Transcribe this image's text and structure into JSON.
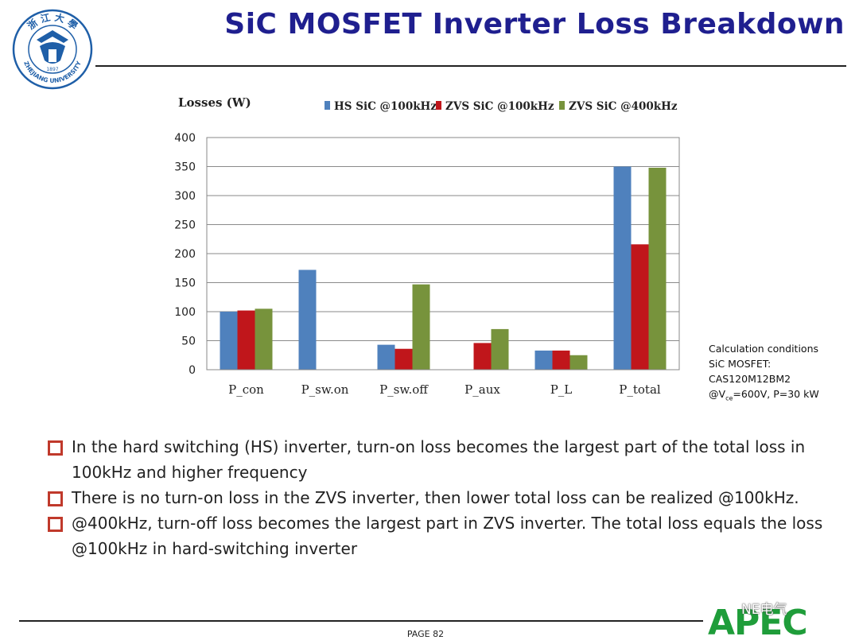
{
  "header": {
    "title": "SiC MOSFET Inverter Loss Breakdown",
    "logo_text": "ZHEJIANG UNIVERSITY",
    "logo_year": "1897"
  },
  "chart_data": {
    "type": "bar",
    "ylabel": "Losses (W)",
    "ylim": [
      0,
      400
    ],
    "yticks": [
      0,
      50,
      100,
      150,
      200,
      250,
      300,
      350,
      400
    ],
    "grid": true,
    "legend_position": "top",
    "categories": [
      "P_con",
      "P_sw.on",
      "P_sw.off",
      "P_aux",
      "P_L",
      "P_total"
    ],
    "series": [
      {
        "name": "HS SiC @100kHz",
        "color": "#4f81bd",
        "values": [
          100,
          172,
          43,
          0,
          33,
          350
        ]
      },
      {
        "name": "ZVS SiC @100kHz",
        "color": "#c0161b",
        "values": [
          102,
          0,
          36,
          46,
          33,
          216
        ]
      },
      {
        "name": "ZVS SiC @400kHz",
        "color": "#77933c",
        "values": [
          105,
          0,
          147,
          70,
          25,
          348
        ]
      }
    ]
  },
  "conditions": {
    "line1": "Calculation conditions",
    "line2": "SiC MOSFET:",
    "line3": "CAS120M12BM2",
    "line4_prefix": "@V",
    "line4_sub": "ce",
    "line4_suffix": "=600V, P=30 kW"
  },
  "bullets": [
    "In the hard switching (HS) inverter, turn-on loss becomes the largest part of the total loss in 100kHz and higher frequency",
    "There is no turn-on loss in the ZVS inverter, then lower total loss can be realized @100kHz.",
    "@400kHz, turn-off loss becomes the largest part in ZVS inverter. The total loss equals the loss @100kHz in hard-switching inverter"
  ],
  "footer": {
    "page": "PAGE 82",
    "brand": "APEC",
    "wechat": "NE电气"
  },
  "colors": {
    "title": "#1f1f8f",
    "bullet_box": "#c0392b",
    "apec": "#1f9d3a"
  }
}
